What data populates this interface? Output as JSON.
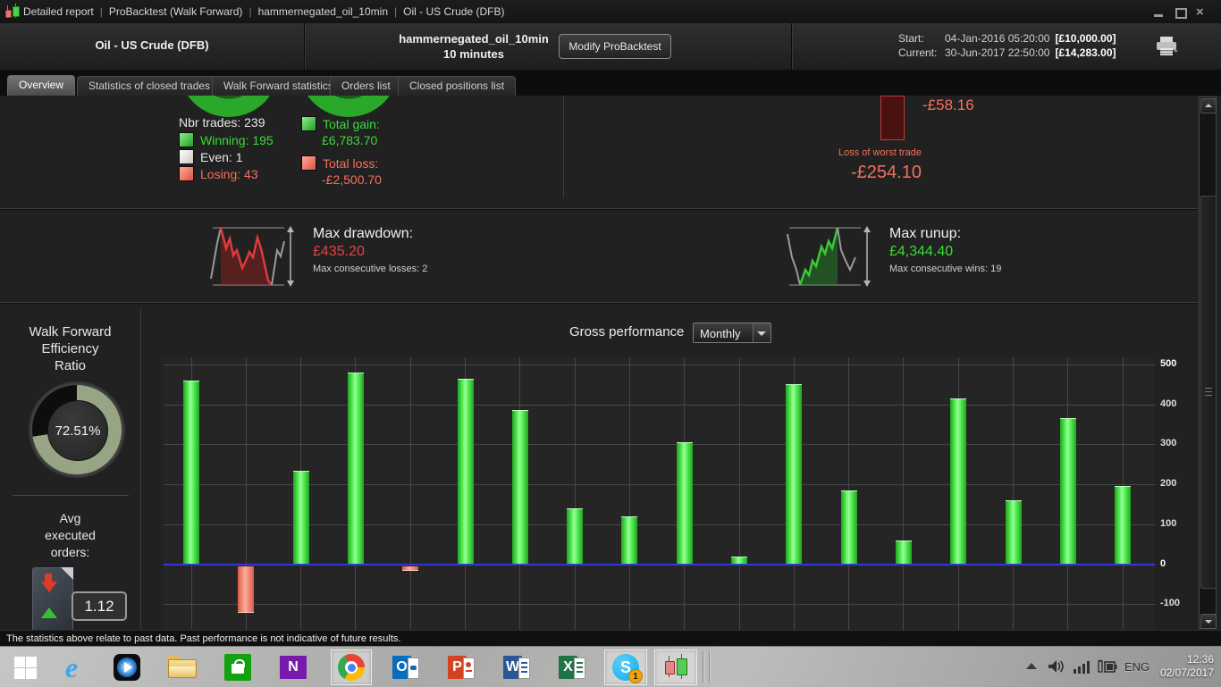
{
  "window": {
    "title_segments": [
      "Detailed report",
      "ProBacktest (Walk Forward)",
      "hammernegated_oil_10min",
      "Oil - US Crude (DFB)"
    ]
  },
  "header": {
    "instrument": "Oil - US Crude (DFB)",
    "strategy_name": "hammernegated_oil_10min",
    "timeframe": "10 minutes",
    "modify_button": "Modify ProBacktest",
    "start_label": "Start:",
    "start_datetime": "04-Jan-2016 05:20:00",
    "start_value": "[£10,000.00]",
    "current_label": "Current:",
    "current_datetime": "30-Jun-2017 22:50:00",
    "current_value": "[£14,283.00]"
  },
  "tabs": [
    {
      "label": "Overview",
      "active": true
    },
    {
      "label": "Statistics of closed trades",
      "active": false
    },
    {
      "label": "Walk Forward statistics",
      "active": false
    },
    {
      "label": "Orders list",
      "active": false
    },
    {
      "label": "Closed positions list",
      "active": false
    }
  ],
  "trade_stats": {
    "nbr_trades": "Nbr trades: 239",
    "winning": "Winning: 195",
    "even": "Even: 1",
    "losing": "Losing: 43",
    "total_gain_label": "Total gain:",
    "total_gain_value": "£6,783.70",
    "total_loss_label": "Total loss:",
    "total_loss_value": "-£2,500.70"
  },
  "worst_trade": {
    "bar_value": "-£58.16",
    "label": "Loss of worst trade",
    "value": "-£254.10"
  },
  "drawdown": {
    "label": "Max drawdown:",
    "value": "£435.20",
    "sub": "Max consecutive losses: 2"
  },
  "runup": {
    "label": "Max runup:",
    "value": "£4,344.40",
    "sub": "Max consecutive wins: 19"
  },
  "walk_forward": {
    "title": "Walk Forward\nEfficiency\nRatio",
    "value": "72.51%",
    "percent": 72.51
  },
  "avg_orders": {
    "title": "Avg\nexecuted\norders:",
    "value": "1.12"
  },
  "performance": {
    "title": "Gross performance",
    "interval": "Monthly"
  },
  "chart_data": {
    "type": "bar",
    "title": "Gross performance",
    "interval": "Monthly",
    "values": [
      460,
      -115,
      235,
      480,
      -10,
      465,
      385,
      140,
      120,
      305,
      20,
      450,
      185,
      60,
      415,
      160,
      365,
      195
    ],
    "yticks": [
      500,
      400,
      300,
      200,
      100,
      0,
      -100
    ],
    "ylim": [
      -164,
      518
    ],
    "grid": true,
    "axis_side": "right",
    "x_labels_visible": false,
    "positive_color": "#47e047",
    "negative_color": "#f4826e",
    "zero_line_color": "#3636d6"
  },
  "status_bar": "The statistics above relate to past data. Past performance is not indicative of future results.",
  "taskbar": {
    "language": "ENG",
    "time": "12:36",
    "date": "02/07/2017",
    "skype_badge": "1",
    "icon_letters": {
      "ie": "e",
      "onenote": "N",
      "outlook": "O",
      "powerpoint": "P",
      "word": "W",
      "excel": "X",
      "skype": "S"
    },
    "icons": [
      "start",
      "internet-explorer",
      "media-player",
      "file-explorer",
      "windows-store",
      "onenote",
      "chrome",
      "outlook",
      "powerpoint",
      "word",
      "excel",
      "skype",
      "probacktest-app"
    ]
  }
}
